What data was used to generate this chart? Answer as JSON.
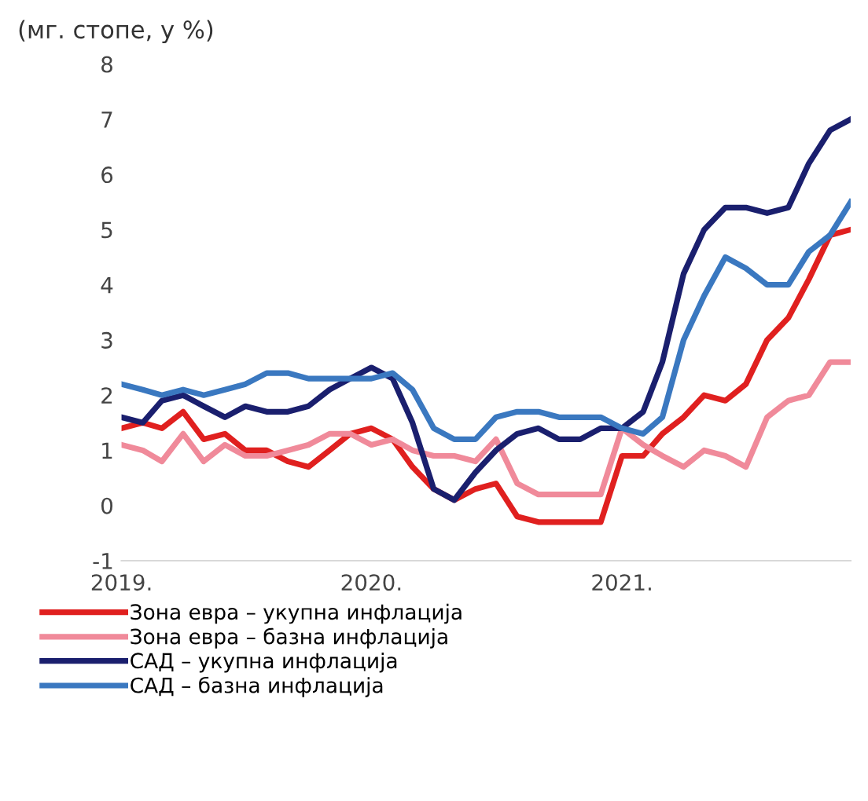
{
  "chart_data": {
    "type": "line",
    "subtitle": "(мг. стопе, у %)",
    "x": [
      "2019-01",
      "2019-02",
      "2019-03",
      "2019-04",
      "2019-05",
      "2019-06",
      "2019-07",
      "2019-08",
      "2019-09",
      "2019-10",
      "2019-11",
      "2019-12",
      "2020-01",
      "2020-02",
      "2020-03",
      "2020-04",
      "2020-05",
      "2020-06",
      "2020-07",
      "2020-08",
      "2020-09",
      "2020-10",
      "2020-11",
      "2020-12",
      "2021-01",
      "2021-02",
      "2021-03",
      "2021-04",
      "2021-05",
      "2021-06",
      "2021-07",
      "2021-08",
      "2021-09",
      "2021-10",
      "2021-11",
      "2021-12"
    ],
    "series": [
      {
        "name": "Зона евра – укупна инфлација",
        "color": "#e0201f",
        "values": [
          1.4,
          1.5,
          1.4,
          1.7,
          1.2,
          1.3,
          1.0,
          1.0,
          0.8,
          0.7,
          1.0,
          1.3,
          1.4,
          1.2,
          0.7,
          0.3,
          0.1,
          0.3,
          0.4,
          -0.2,
          -0.3,
          -0.3,
          -0.3,
          -0.3,
          0.9,
          0.9,
          1.3,
          1.6,
          2.0,
          1.9,
          2.2,
          3.0,
          3.4,
          4.1,
          4.9,
          5.0
        ]
      },
      {
        "name": "Зона евра – базна инфлација",
        "color": "#f08a9a",
        "values": [
          1.1,
          1.0,
          0.8,
          1.3,
          0.8,
          1.1,
          0.9,
          0.9,
          1.0,
          1.1,
          1.3,
          1.3,
          1.1,
          1.2,
          1.0,
          0.9,
          0.9,
          0.8,
          1.2,
          0.4,
          0.2,
          0.2,
          0.2,
          0.2,
          1.4,
          1.1,
          0.9,
          0.7,
          1.0,
          0.9,
          0.7,
          1.6,
          1.9,
          2.0,
          2.6,
          2.6
        ]
      },
      {
        "name": "САД – укупна инфлација",
        "color": "#1a1f6e",
        "values": [
          1.6,
          1.5,
          1.9,
          2.0,
          1.8,
          1.6,
          1.8,
          1.7,
          1.7,
          1.8,
          2.1,
          2.3,
          2.5,
          2.3,
          1.5,
          0.3,
          0.1,
          0.6,
          1.0,
          1.3,
          1.4,
          1.2,
          1.2,
          1.4,
          1.4,
          1.7,
          2.6,
          4.2,
          5.0,
          5.4,
          5.4,
          5.3,
          5.4,
          6.2,
          6.8,
          7.0
        ]
      },
      {
        "name": "САД – базна инфлација",
        "color": "#3a78c0",
        "values": [
          2.2,
          2.1,
          2.0,
          2.1,
          2.0,
          2.1,
          2.2,
          2.4,
          2.4,
          2.3,
          2.3,
          2.3,
          2.3,
          2.4,
          2.1,
          1.4,
          1.2,
          1.2,
          1.6,
          1.7,
          1.7,
          1.6,
          1.6,
          1.6,
          1.4,
          1.3,
          1.6,
          3.0,
          3.8,
          4.5,
          4.3,
          4.0,
          4.0,
          4.6,
          4.9,
          5.5
        ]
      }
    ],
    "xlim": [
      "2019-01",
      "2021-12"
    ],
    "xticks": [
      {
        "value": "2019-01",
        "label": "2019."
      },
      {
        "value": "2020-01",
        "label": "2020."
      },
      {
        "value": "2021-01",
        "label": "2021."
      }
    ],
    "ylim": [
      -1,
      8
    ],
    "yticks": [
      {
        "value": -1,
        "label": "-1"
      },
      0,
      1,
      2,
      3,
      4,
      5,
      6,
      7,
      8
    ],
    "grid": false,
    "legend": "bottom",
    "marker": "none",
    "line_style": "solid"
  }
}
